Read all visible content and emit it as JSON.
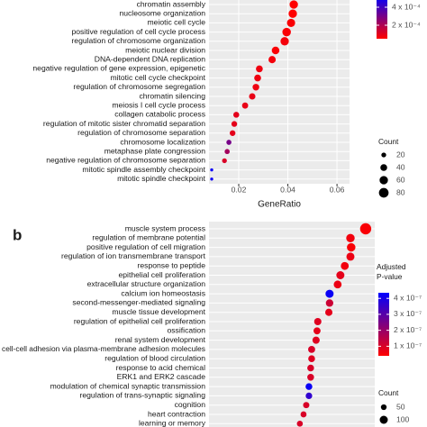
{
  "chart_data": [
    {
      "type": "dot",
      "x_label": "GeneRatio",
      "categories": [
        "chromatin assembly",
        "nucleosome organization",
        "meiotic cell cycle",
        "positive regulation of cell cycle process",
        "regulation of chromosome organization",
        "meiotic nuclear division",
        "DNA-dependent DNA replication",
        "negative regulation of gene expression, epigenetic",
        "mitotic cell cycle checkpoint",
        "regulation of chromosome segregation",
        "chromatin silencing",
        "meiosis I cell cycle process",
        "collagen catabolic process",
        "regulation of mitotic sister chromatid separation",
        "regulation of chromosome separation",
        "chromosome localization",
        "metaphase plate congression",
        "negative regulation of chromosome separation",
        "mitotic spindle assembly checkpoint",
        "mitotic spindle checkpoint"
      ],
      "values": [
        0.0424,
        0.042,
        0.0413,
        0.0395,
        0.0387,
        0.035,
        0.0336,
        0.0284,
        0.0277,
        0.027,
        0.0255,
        0.0226,
        0.019,
        0.0182,
        0.0175,
        0.016,
        0.0153,
        0.0142,
        0.009,
        0.009
      ],
      "counts": [
        60,
        60,
        58,
        62,
        60,
        50,
        45,
        40,
        40,
        38,
        35,
        32,
        30,
        28,
        28,
        22,
        22,
        20,
        8,
        8
      ],
      "p_adjust": [
        5e-05,
        5e-05,
        6e-05,
        6e-05,
        7e-05,
        6e-05,
        7e-05,
        8e-05,
        8e-05,
        8e-05,
        9e-05,
        9e-05,
        0.0001,
        0.0001,
        0.0001,
        0.0003,
        0.00022,
        0.00012,
        0.0005,
        0.0005
      ],
      "xlim": [
        0.0079,
        0.0651
      ],
      "xticks": [
        0.02,
        0.04,
        0.06
      ],
      "grid": true,
      "colormap": [
        "#ff0000",
        "#0000ff"
      ],
      "color_lim": [
        5e-05,
        0.00052
      ],
      "color_ticks": [
        {
          "value": 0.0002,
          "label": "2 x 10⁻⁴"
        },
        {
          "value": 0.0004,
          "label": "4 x 10⁻⁴"
        }
      ],
      "size_title": "Count",
      "size_legend": [
        20,
        40,
        60,
        80
      ]
    },
    {
      "type": "dot",
      "panel_label": "b",
      "categories": [
        "muscle system process",
        "regulation of membrane potential",
        "positive regulation of cell migration",
        "regulation of ion transmembrane transport",
        "response to peptide",
        "epithelial cell proliferation",
        "extracellular structure organization",
        "calcium ion homeostasis",
        "second-messenger-mediated signaling",
        "muscle tissue development",
        "regulation of epithelial cell proliferation",
        "ossification",
        "renal system development",
        "cell-cell adhesion via plasma-membrane adhesion molecules",
        "regulation of blood circulation",
        "response to acid chemical",
        "ERK1 and ERK2 cascade",
        "modulation of chemical synaptic transmission",
        "regulation of trans-synaptic signaling",
        "cognition",
        "heart contraction",
        "learning or memory"
      ],
      "values": [
        0.0717,
        0.0655,
        0.0658,
        0.0655,
        0.0632,
        0.0614,
        0.0603,
        0.057,
        0.057,
        0.0567,
        0.0522,
        0.0519,
        0.0515,
        0.0497,
        0.0497,
        0.0493,
        0.0493,
        0.0486,
        0.0486,
        0.0475,
        0.0464,
        0.0449
      ],
      "counts": [
        190,
        110,
        110,
        100,
        95,
        100,
        95,
        100,
        85,
        80,
        80,
        75,
        80,
        75,
        70,
        70,
        70,
        70,
        65,
        60,
        55,
        55
      ],
      "p_adjust": [
        5e-08,
        6e-08,
        5e-08,
        7e-08,
        6e-08,
        8e-08,
        7e-08,
        4.2e-07,
        1.2e-07,
        8e-08,
        9e-08,
        8e-08,
        9e-08,
        1e-07,
        9e-08,
        1e-07,
        1e-07,
        4.2e-07,
        3.6e-07,
        1e-07,
        1e-07,
        1e-07
      ],
      "xlim": [
        0.0079,
        0.0754
      ],
      "grid": true,
      "colormap": [
        "#ff0000",
        "#0000ff"
      ],
      "color_title": [
        "Adjusted",
        "P-value"
      ],
      "color_lim": [
        4e-08,
        4.35e-07
      ],
      "color_ticks": [
        {
          "value": 1e-07,
          "label": "1 x 10⁻⁷"
        },
        {
          "value": 2e-07,
          "label": "2 x 10⁻⁷"
        },
        {
          "value": 3e-07,
          "label": "3 x 10⁻⁷"
        },
        {
          "value": 4e-07,
          "label": "4 x 10⁻⁷"
        }
      ],
      "size_title": "Count",
      "size_legend": [
        50,
        100
      ]
    }
  ]
}
